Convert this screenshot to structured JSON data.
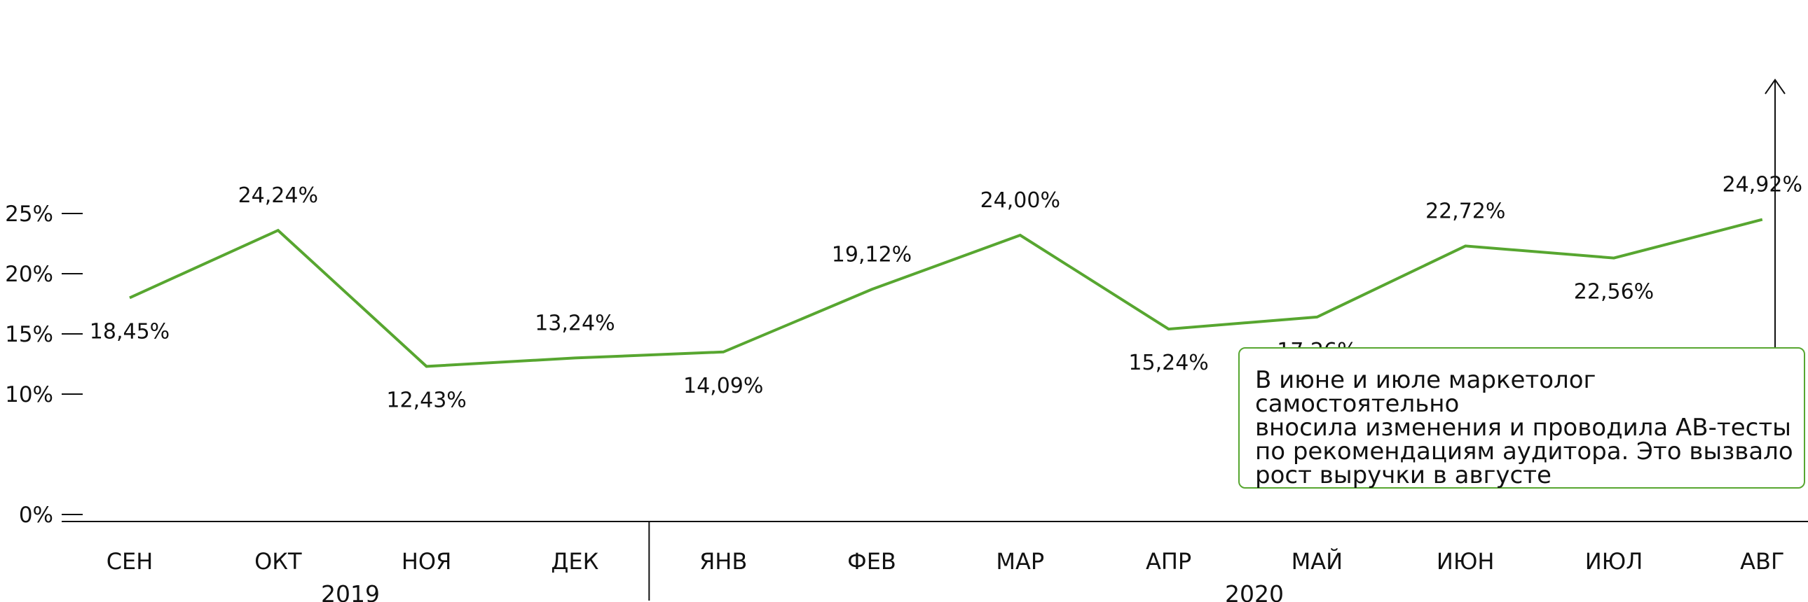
{
  "chart_data": {
    "type": "line",
    "categories": [
      "СЕН",
      "ОКТ",
      "НОЯ",
      "ДЕК",
      "ЯНВ",
      "ФЕВ",
      "МАР",
      "АПР",
      "МАЙ",
      "ИЮН",
      "ИЮЛ",
      "АВГ"
    ],
    "series": [
      {
        "values": [
          18.45,
          24.24,
          12.43,
          13.24,
          14.09,
          19.12,
          24.0,
          15.24,
          17.26,
          22.72,
          22.56,
          24.92
        ],
        "labels": [
          "18,45%",
          "24,24%",
          "12,43%",
          "13,24%",
          "14,09%",
          "19,12%",
          "24,00%",
          "15,24%",
          "17,26%",
          "22,72%",
          "22,56%",
          "24,92%"
        ],
        "color": "#57a630"
      }
    ],
    "plot_values": [
      18.0,
      23.6,
      12.3,
      13.0,
      13.5,
      18.7,
      23.2,
      15.4,
      16.4,
      22.3,
      21.3,
      24.5
    ],
    "yticks": [
      0,
      10,
      15,
      20,
      25
    ],
    "ytick_labels": [
      "0%",
      "10%",
      "15%",
      "20%",
      "25%"
    ],
    "ylim": [
      0,
      25
    ],
    "years": [
      {
        "label": "2019",
        "from": 0,
        "to": 3
      },
      {
        "label": "2020",
        "from": 4,
        "to": 11
      }
    ],
    "grid": false,
    "legend": "none"
  },
  "annotation": {
    "text": "В июне и июле маркетолог самостоятельно\nвносила изменения и проводила АВ-тесты\nпо рекомендациям аудитора. Это вызвало\nрост выручки в августе"
  },
  "colors": {
    "line": "#57a630",
    "axis": "#111111",
    "box_border": "#57a630"
  }
}
